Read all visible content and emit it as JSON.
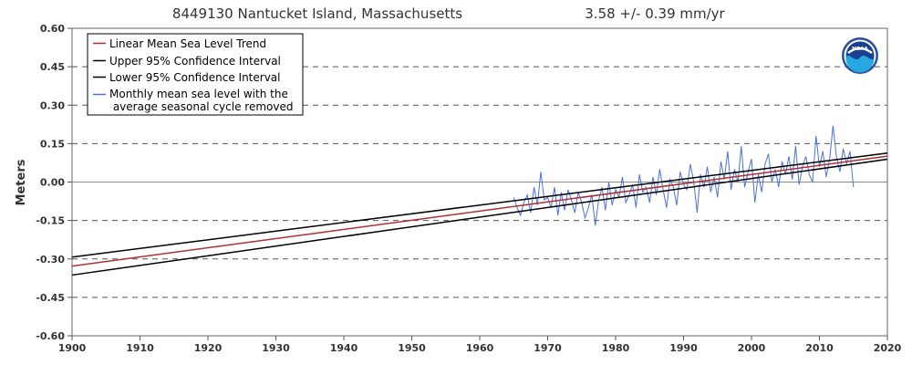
{
  "chart_data": {
    "type": "line",
    "title": "8449130 Nantucket Island, Massachusetts",
    "trend_text": "3.58 +/-  0.39 mm/yr",
    "xlabel": "",
    "ylabel": "Meters",
    "xlim": [
      1900,
      2020
    ],
    "ylim": [
      -0.6,
      0.6
    ],
    "x_ticks": [
      "1900",
      "1910",
      "1920",
      "1930",
      "1940",
      "1950",
      "1960",
      "1970",
      "1980",
      "1990",
      "2000",
      "2010",
      "2020"
    ],
    "y_ticks": [
      "0.60",
      "0.45",
      "0.30",
      "0.15",
      "0.00",
      "-0.15",
      "-0.30",
      "-0.45",
      "-0.60"
    ],
    "grid": "horizontal dashed",
    "legend_position": "top-left",
    "colors": {
      "trend": "#b03030",
      "confidence": "#000000",
      "monthly": "#4a72d8"
    },
    "logo_text": "NOAA",
    "series": [
      {
        "name": "Linear Mean Sea Level Trend",
        "color": "#b03030",
        "x": [
          1900,
          2020
        ],
        "y": [
          -0.328,
          0.101
        ]
      },
      {
        "name": "Upper 95% Confidence Interval",
        "color": "#000000",
        "x": [
          1900,
          2020
        ],
        "y": [
          -0.293,
          0.113
        ]
      },
      {
        "name": "Lower 95% Confidence Interval",
        "color": "#000000",
        "x": [
          1900,
          2020
        ],
        "y": [
          -0.363,
          0.089
        ]
      },
      {
        "name": "Monthly mean sea level with the",
        "name_line2": " average seasonal cycle removed",
        "color": "#4a72d8",
        "x": [
          1965.0,
          1965.5,
          1966.0,
          1966.5,
          1967.0,
          1967.5,
          1968.0,
          1968.5,
          1969.0,
          1969.5,
          1970.0,
          1970.5,
          1971.0,
          1971.5,
          1972.0,
          1972.5,
          1973.0,
          1973.5,
          1974.0,
          1974.5,
          1975.0,
          1975.5,
          1976.0,
          1976.5,
          1977.0,
          1977.5,
          1978.0,
          1978.5,
          1979.0,
          1979.5,
          1980.0,
          1980.5,
          1981.0,
          1981.5,
          1982.0,
          1982.5,
          1983.0,
          1983.5,
          1984.0,
          1984.5,
          1985.0,
          1985.5,
          1986.0,
          1986.5,
          1987.0,
          1987.5,
          1988.0,
          1988.5,
          1989.0,
          1989.5,
          1990.0,
          1990.5,
          1991.0,
          1991.5,
          1992.0,
          1992.5,
          1993.0,
          1993.5,
          1994.0,
          1994.5,
          1995.0,
          1995.5,
          1996.0,
          1996.5,
          1997.0,
          1997.5,
          1998.0,
          1998.5,
          1999.0,
          1999.5,
          2000.0,
          2000.5,
          2001.0,
          2001.5,
          2002.0,
          2002.5,
          2003.0,
          2003.5,
          2004.0,
          2004.5,
          2005.0,
          2005.5,
          2006.0,
          2006.5,
          2007.0,
          2007.5,
          2008.0,
          2008.5,
          2009.0,
          2009.5,
          2010.0,
          2010.5,
          2011.0,
          2011.5,
          2012.0,
          2012.5,
          2013.0,
          2013.5,
          2014.0,
          2014.5,
          2015.0
        ],
        "y": [
          -0.06,
          -0.1,
          -0.13,
          -0.08,
          -0.05,
          -0.12,
          -0.02,
          -0.09,
          0.04,
          -0.07,
          -0.06,
          -0.1,
          -0.02,
          -0.13,
          -0.04,
          -0.11,
          -0.03,
          -0.07,
          -0.12,
          -0.04,
          -0.08,
          -0.14,
          -0.1,
          -0.05,
          -0.17,
          -0.07,
          -0.02,
          -0.11,
          0.0,
          -0.09,
          -0.03,
          -0.06,
          0.02,
          -0.08,
          -0.05,
          -0.01,
          -0.1,
          0.03,
          -0.04,
          -0.02,
          -0.08,
          0.02,
          -0.05,
          0.05,
          -0.03,
          -0.1,
          0.01,
          -0.02,
          -0.09,
          0.04,
          -0.01,
          -0.03,
          0.07,
          0.0,
          -0.12,
          0.03,
          -0.02,
          0.06,
          -0.04,
          0.02,
          -0.06,
          0.08,
          0.01,
          0.12,
          -0.03,
          0.05,
          0.0,
          0.14,
          -0.02,
          0.04,
          0.09,
          -0.08,
          0.03,
          -0.04,
          0.07,
          0.11,
          0.0,
          0.05,
          -0.02,
          0.08,
          0.03,
          0.1,
          0.01,
          0.14,
          -0.01,
          0.06,
          0.1,
          0.03,
          0.0,
          0.18,
          0.06,
          0.12,
          0.02,
          0.09,
          0.22,
          0.1,
          0.04,
          0.13,
          0.07,
          0.12,
          -0.02
        ]
      }
    ]
  }
}
